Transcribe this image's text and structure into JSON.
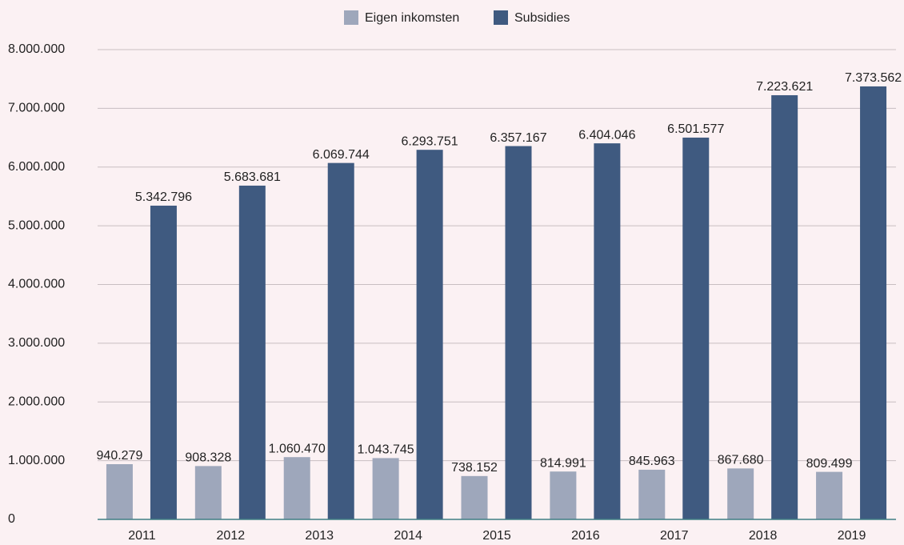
{
  "chart_data": {
    "type": "bar",
    "categories": [
      "2011",
      "2012",
      "2013",
      "2014",
      "2015",
      "2016",
      "2017",
      "2018",
      "2019"
    ],
    "series": [
      {
        "name": "Eigen inkomsten",
        "color": "#9ea7bb",
        "values": [
          940279,
          908328,
          1060470,
          1043745,
          738152,
          814991,
          845963,
          867680,
          809499
        ],
        "value_labels": [
          "940.279",
          "908.328",
          "1.060.470",
          "1.043.745",
          "738.152",
          "814.991",
          "845.963",
          "867.680",
          "809.499"
        ]
      },
      {
        "name": "Subsidies",
        "color": "#3f5a80",
        "values": [
          5342796,
          5683681,
          6069744,
          6293751,
          6357167,
          6404046,
          6501577,
          7223621,
          7373562
        ],
        "value_labels": [
          "5.342.796",
          "5.683.681",
          "6.069.744",
          "6.293.751",
          "6.357.167",
          "6.404.046",
          "6.501.577",
          "7.223.621",
          "7.373.562"
        ]
      }
    ],
    "ylim": [
      0,
      8000000
    ],
    "yticks": [
      0,
      {
        "value": 1000000,
        "label": "1.000.000"
      },
      {
        "value": 2000000,
        "label": "2.000.000"
      },
      {
        "value": 3000000,
        "label": "3.000.000"
      },
      {
        "value": 4000000,
        "label": "4.000.000"
      },
      {
        "value": 5000000,
        "label": "5.000.000"
      },
      {
        "value": 6000000,
        "label": "6.000.000"
      },
      {
        "value": 7000000,
        "label": "7.000.000"
      },
      {
        "value": 8000000,
        "label": "8.000.000"
      }
    ],
    "grid": true,
    "legend": "top"
  }
}
